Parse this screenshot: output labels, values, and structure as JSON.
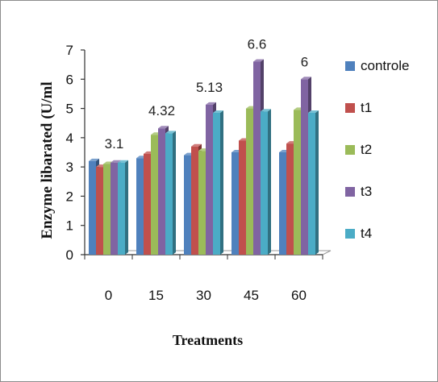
{
  "chart_data": {
    "type": "bar",
    "title": "",
    "xlabel": "Treatments",
    "ylabel": "Enzyme libarated (U/ml",
    "categories": [
      "0",
      "15",
      "30",
      "45",
      "60"
    ],
    "ylim": [
      0,
      7
    ],
    "yticks": [
      "0",
      "1",
      "2",
      "3",
      "4",
      "5",
      "6",
      "7"
    ],
    "series": [
      {
        "name": "controle",
        "color": "#4F81BD",
        "values": [
          3.2,
          3.3,
          3.4,
          3.5,
          3.5
        ]
      },
      {
        "name": "t1",
        "color": "#C0504D",
        "values": [
          3.0,
          3.45,
          3.7,
          3.9,
          3.8
        ]
      },
      {
        "name": "t2",
        "color": "#9BBB59",
        "values": [
          3.1,
          4.1,
          3.55,
          5.0,
          4.95
        ]
      },
      {
        "name": "t3",
        "color": "#8064A2",
        "values": [
          3.15,
          4.32,
          5.13,
          6.6,
          6.0
        ]
      },
      {
        "name": "t4",
        "color": "#4BACC6",
        "values": [
          3.15,
          4.15,
          4.85,
          4.9,
          4.85
        ]
      }
    ],
    "annotations": [
      "3.1",
      "4.32",
      "5.13",
      "6.6",
      "6"
    ],
    "legend_position": "right",
    "grid": false
  }
}
